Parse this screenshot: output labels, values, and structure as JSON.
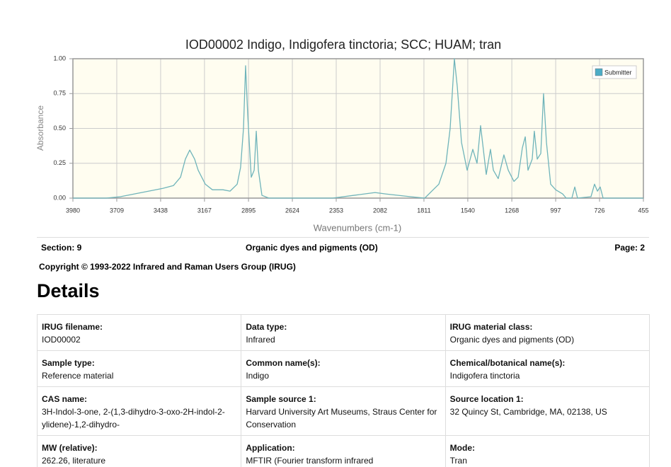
{
  "chart_data": {
    "type": "line",
    "title": "IOD00002 Indigo, Indigofera tinctoria; SCC; HUAM; tran",
    "x_label": "Wavenumbers (cm-1)",
    "y_label": "Absorbance",
    "xlim": [
      3980,
      455
    ],
    "ylim": [
      0,
      1
    ],
    "xticks": [
      3980,
      3709,
      3438,
      3167,
      2895,
      2624,
      2353,
      2082,
      1811,
      1540,
      1268,
      997,
      726,
      455
    ],
    "yticks": [
      {
        "value": 0,
        "label": "0.00"
      },
      {
        "value": 0.25,
        "label": "0.25"
      },
      {
        "value": 0.5,
        "label": "0.50"
      },
      {
        "value": 0.75,
        "label": "0.75"
      },
      {
        "value": 1,
        "label": "1.00"
      }
    ],
    "grid": true,
    "legend": "upper right",
    "background": "#fffdf0",
    "x": [
      3980,
      3774,
      3687,
      3556,
      3425,
      3359,
      3315,
      3285,
      3258,
      3228,
      3206,
      3162,
      3118,
      3053,
      3009,
      2965,
      2944,
      2926,
      2913,
      2900,
      2878,
      2860,
      2847,
      2834,
      2812,
      2769,
      2375,
      2244,
      2113,
      2047,
      1894,
      1806,
      1763,
      1719,
      1675,
      1649,
      1623,
      1605,
      1579,
      1544,
      1509,
      1483,
      1461,
      1444,
      1426,
      1400,
      1382,
      1352,
      1317,
      1290,
      1255,
      1229,
      1203,
      1185,
      1168,
      1142,
      1129,
      1111,
      1089,
      1072,
      1054,
      1028,
      997,
      954,
      932,
      897,
      879,
      862,
      779,
      757,
      739,
      722,
      704,
      455
    ],
    "series": [
      {
        "name": "Submitter",
        "color": "#6fb4ba",
        "legend_color": "#4bacc6",
        "values": [
          0,
          0,
          0.01,
          0.04,
          0.07,
          0.09,
          0.15,
          0.28,
          0.345,
          0.28,
          0.2,
          0.1,
          0.06,
          0.06,
          0.05,
          0.1,
          0.22,
          0.5,
          0.95,
          0.6,
          0.15,
          0.2,
          0.48,
          0.2,
          0.02,
          0,
          0,
          0.02,
          0.04,
          0.03,
          0.01,
          0,
          0.05,
          0.1,
          0.25,
          0.5,
          1,
          0.8,
          0.4,
          0.2,
          0.35,
          0.25,
          0.52,
          0.35,
          0.17,
          0.35,
          0.2,
          0.14,
          0.31,
          0.2,
          0.12,
          0.15,
          0.36,
          0.44,
          0.2,
          0.28,
          0.48,
          0.28,
          0.32,
          0.75,
          0.4,
          0.1,
          0.06,
          0.03,
          0,
          0,
          0.08,
          0,
          0.01,
          0.1,
          0.05,
          0.08,
          0,
          0
        ]
      }
    ]
  },
  "section": {
    "left": "Section: 9",
    "center": "Organic dyes and pigments (OD)",
    "right": "Page: 2"
  },
  "copyright": "Copyright © 1993-2022 Infrared and Raman Users Group (IRUG)",
  "heading": "Details",
  "table": {
    "rows": [
      [
        {
          "label": "IRUG filename:",
          "value": "IOD00002"
        },
        {
          "label": "Data type:",
          "value": "Infrared"
        },
        {
          "label": "IRUG material class:",
          "value": "Organic dyes and pigments (OD)"
        }
      ],
      [
        {
          "label": "Sample type:",
          "value": "Reference material"
        },
        {
          "label": "Common name(s):",
          "value": "Indigo"
        },
        {
          "label": "Chemical/botanical name(s):",
          "value": "Indigofera tinctoria"
        }
      ],
      [
        {
          "label": "CAS name:",
          "value": "3H-Indol-3-one, 2-(1,3-dihydro-3-oxo-2H-indol-2-ylidene)-1,2-dihydro-"
        },
        {
          "label": "Sample source 1:",
          "value": "Harvard University Art Museums, Straus Center for Conservation"
        },
        {
          "label": "Source location 1:",
          "value": "32 Quincy St, Cambridge, MA, 02138, US"
        }
      ],
      [
        {
          "label": "MW (relative):",
          "value": "262.26, literature"
        },
        {
          "label": "Application:",
          "value": "MFTIR (Fourier transform infrared"
        },
        {
          "label": "Mode:",
          "value": "Tran"
        }
      ]
    ]
  }
}
